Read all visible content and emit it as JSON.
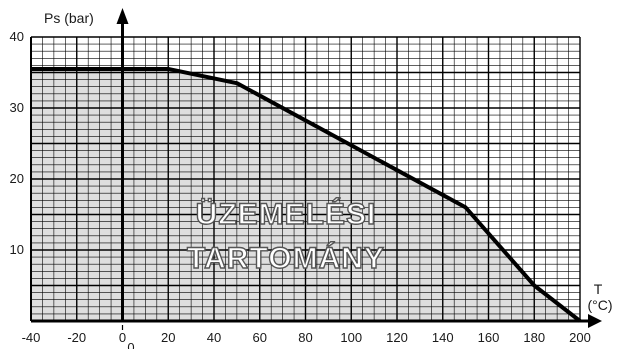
{
  "chart_data": {
    "type": "area",
    "title": "",
    "xlabel": "T",
    "xlabel_unit": "(°C)",
    "ylabel": "Ps (bar)",
    "xlim": [
      -40,
      200
    ],
    "ylim": [
      0,
      40
    ],
    "x_ticks": [
      -40,
      -20,
      0,
      20,
      40,
      60,
      80,
      100,
      120,
      140,
      160,
      180,
      200
    ],
    "y_ticks": [
      10,
      20,
      30,
      40
    ],
    "origin_label": "0",
    "region_label": [
      "ÜZEMELÉSI",
      "TARTOMÁNY"
    ],
    "grid": true,
    "series": [
      {
        "x": [
          -40,
          20,
          50,
          150,
          180,
          200
        ],
        "values": [
          35.5,
          35.5,
          33.5,
          16,
          5,
          0
        ]
      }
    ],
    "colors": {
      "fill": "#dedede",
      "line": "#000000",
      "grid": "#000000"
    }
  }
}
